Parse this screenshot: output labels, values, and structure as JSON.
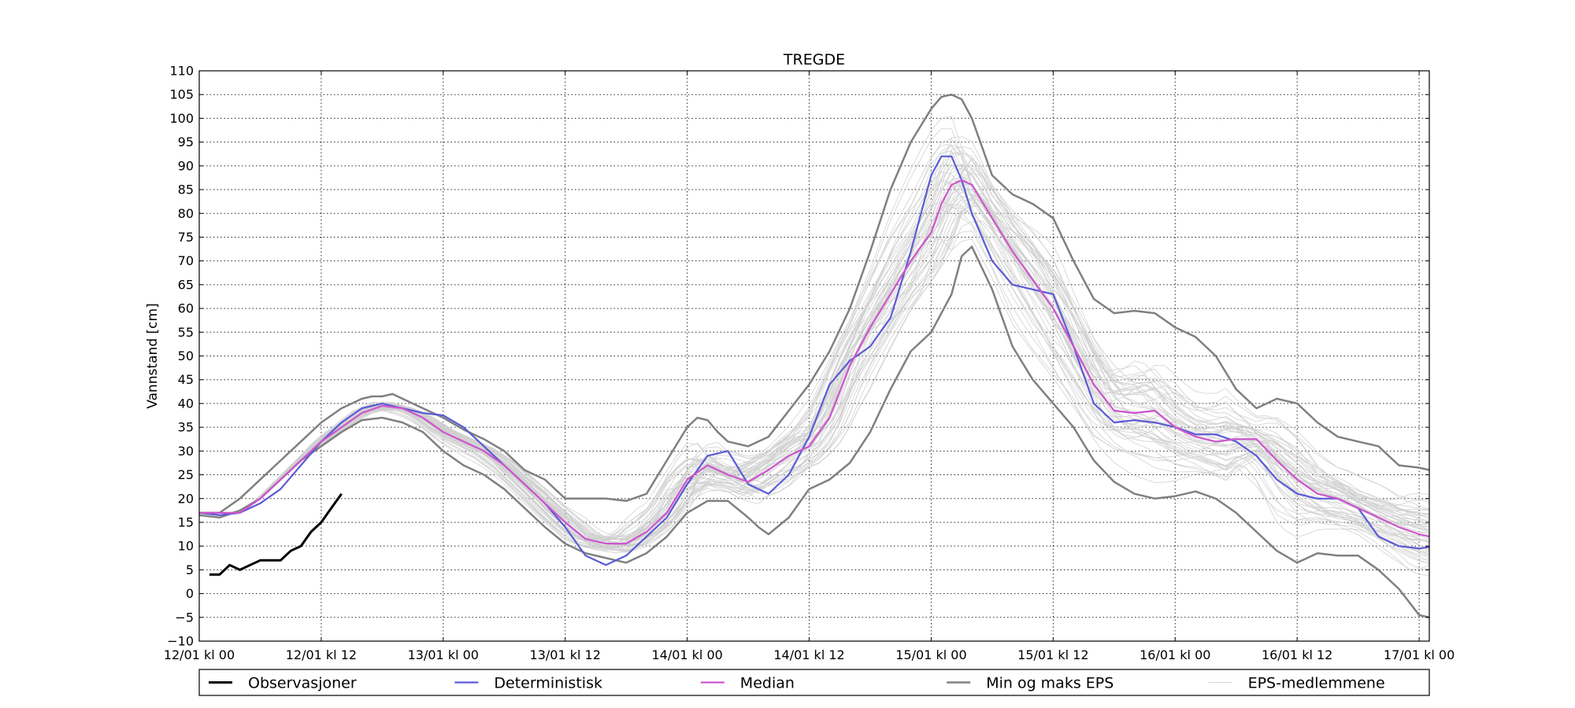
{
  "chart_data": {
    "type": "line",
    "title": "TREGDE",
    "ylabel": "Vannstand [cm]",
    "xlabel": "",
    "ylim": [
      -10,
      110
    ],
    "y_ticks": [
      -10,
      -5,
      0,
      5,
      10,
      15,
      20,
      25,
      30,
      35,
      40,
      45,
      50,
      55,
      60,
      65,
      70,
      75,
      80,
      85,
      90,
      95,
      100,
      105,
      110
    ],
    "xlim": [
      0,
      121
    ],
    "x_unit": "hours since 12/01 kl 00",
    "x_ticks": [
      {
        "x": 0,
        "label": "12/01 kl 00"
      },
      {
        "x": 12,
        "label": "12/01 kl 12"
      },
      {
        "x": 24,
        "label": "13/01 kl 00"
      },
      {
        "x": 36,
        "label": "13/01 kl 12"
      },
      {
        "x": 48,
        "label": "14/01 kl 00"
      },
      {
        "x": 60,
        "label": "14/01 kl 12"
      },
      {
        "x": 72,
        "label": "15/01 kl 00"
      },
      {
        "x": 84,
        "label": "15/01 kl 12"
      },
      {
        "x": 96,
        "label": "16/01 kl 00"
      },
      {
        "x": 108,
        "label": "16/01 kl 12"
      },
      {
        "x": 120,
        "label": "17/01 kl 00"
      }
    ],
    "grid": true,
    "legend_position": "bottom",
    "series": [
      {
        "name": "Observasjoner",
        "color": "#000000",
        "width": 3,
        "x": [
          1,
          2,
          3,
          4,
          5,
          6,
          7,
          8,
          9,
          10,
          11,
          12,
          13,
          14
        ],
        "y": [
          4,
          4,
          6,
          5,
          6,
          7,
          7,
          7,
          9,
          10,
          13,
          15,
          18,
          21
        ]
      },
      {
        "name": "Deterministisk",
        "color": "#5b5bd6",
        "width": 2.2,
        "x": [
          0,
          2,
          4,
          6,
          8,
          10,
          12,
          14,
          16,
          18,
          20,
          22,
          24,
          26,
          28,
          30,
          32,
          34,
          36,
          38,
          40,
          42,
          44,
          46,
          48,
          50,
          52,
          54,
          56,
          58,
          60,
          62,
          64,
          66,
          68,
          70,
          72,
          73,
          74,
          75,
          76,
          78,
          80,
          82,
          84,
          86,
          88,
          90,
          92,
          94,
          96,
          98,
          100,
          102,
          104,
          106,
          108,
          110,
          112,
          114,
          116,
          118,
          120,
          121
        ],
        "y": [
          17,
          16.5,
          17,
          19,
          22,
          27,
          32,
          36,
          39,
          40,
          39,
          38,
          37.5,
          35,
          31,
          27,
          23,
          19,
          14,
          8,
          6,
          8,
          12,
          16,
          23,
          29,
          30,
          23,
          21,
          25,
          33,
          44,
          49,
          52,
          58,
          72,
          88,
          92,
          92,
          87,
          80,
          70,
          65,
          64,
          63,
          52,
          40,
          36,
          36.5,
          36,
          35,
          33.5,
          33.5,
          32,
          29,
          24,
          21,
          20,
          20,
          18,
          12,
          10,
          9.5,
          9.8
        ]
      },
      {
        "name": "Median",
        "color": "#cc55cc",
        "width": 2.2,
        "x": [
          0,
          2,
          4,
          6,
          8,
          10,
          12,
          14,
          16,
          18,
          20,
          22,
          24,
          26,
          28,
          30,
          32,
          34,
          36,
          38,
          40,
          42,
          44,
          46,
          48,
          50,
          52,
          54,
          56,
          58,
          60,
          62,
          64,
          66,
          68,
          70,
          72,
          73,
          74,
          75,
          76,
          78,
          80,
          82,
          84,
          86,
          88,
          90,
          92,
          94,
          96,
          98,
          100,
          102,
          104,
          106,
          108,
          110,
          112,
          114,
          116,
          118,
          120,
          121
        ],
        "y": [
          17,
          17,
          17,
          20,
          24,
          28,
          32,
          35,
          38,
          39.5,
          39,
          37,
          34,
          32,
          30,
          27,
          23,
          19,
          15,
          11.5,
          10.5,
          10.5,
          13,
          17,
          24,
          27,
          25,
          23.5,
          26,
          29,
          31,
          37,
          48,
          56,
          63,
          70,
          76,
          82,
          86,
          87,
          86,
          79,
          72,
          66,
          60,
          52,
          44,
          38.5,
          38,
          38.5,
          35,
          33,
          32,
          32.5,
          32.5,
          28,
          24,
          21,
          20,
          18,
          16,
          14,
          12.5,
          12
        ]
      },
      {
        "name": "Min og maks EPS",
        "color": "#808080",
        "width": 2.5,
        "parts": [
          {
            "x": [
              0,
              2,
              4,
              6,
              8,
              10,
              12,
              14,
              16,
              17,
              18,
              19,
              20,
              22,
              24,
              26,
              28,
              30,
              32,
              34,
              36,
              38,
              40,
              42,
              44,
              46,
              48,
              49,
              50,
              51,
              52,
              54,
              56,
              58,
              60,
              62,
              64,
              66,
              68,
              70,
              72,
              73,
              74,
              75,
              76,
              78,
              80,
              82,
              84,
              86,
              88,
              90,
              92,
              94,
              96,
              98,
              100,
              102,
              104,
              106,
              108,
              110,
              112,
              114,
              116,
              118,
              120,
              121
            ],
            "y": [
              17,
              17,
              20,
              24,
              28,
              32,
              36,
              39,
              41,
              41.5,
              41.5,
              42,
              41,
              39,
              37,
              34.5,
              32.5,
              30,
              26,
              24,
              20,
              20,
              20,
              19.5,
              21,
              28,
              35,
              37,
              36.5,
              34,
              32,
              31,
              33,
              38.5,
              44,
              51,
              60,
              72,
              85,
              95,
              102,
              104.5,
              105,
              104,
              100,
              88,
              84,
              82,
              79,
              70,
              62,
              59,
              59.5,
              59,
              56,
              54,
              50,
              43,
              39,
              41,
              40,
              36,
              33,
              32,
              31,
              27,
              26.5,
              26
            ]
          },
          {
            "x": [
              0,
              2,
              4,
              6,
              8,
              10,
              12,
              14,
              16,
              18,
              20,
              22,
              24,
              26,
              28,
              30,
              32,
              34,
              36,
              38,
              40,
              42,
              44,
              46,
              48,
              50,
              52,
              54,
              55,
              56,
              58,
              60,
              62,
              64,
              66,
              68,
              70,
              72,
              74,
              75,
              76,
              78,
              80,
              82,
              84,
              86,
              88,
              90,
              92,
              94,
              96,
              98,
              100,
              102,
              104,
              106,
              108,
              110,
              112,
              114,
              116,
              118,
              120,
              121
            ],
            "y": [
              16.5,
              16,
              17.5,
              20,
              24,
              28,
              31,
              34,
              36.5,
              37,
              36,
              34,
              30,
              27,
              25,
              22,
              18,
              14,
              10.5,
              8.5,
              7.5,
              6.5,
              8.5,
              12,
              17,
              19.5,
              19.5,
              16,
              14,
              12.5,
              16,
              22,
              24,
              27.5,
              34,
              43,
              51,
              55,
              63,
              71,
              73,
              64,
              52,
              45,
              40,
              35,
              28,
              23.5,
              21,
              20,
              20.5,
              21.5,
              20,
              17,
              13,
              9,
              6.5,
              8.5,
              8,
              8,
              5,
              1,
              -4.5,
              -5
            ]
          }
        ]
      }
    ],
    "ensemble": {
      "name": "EPS-medlemmene",
      "color": "#cfcfcf",
      "member_count": 50
    },
    "legend": [
      {
        "label": "Observasjoner",
        "color": "#000000",
        "width": 3
      },
      {
        "label": "Deterministisk",
        "color": "#5b5bd6",
        "width": 2.2
      },
      {
        "label": "Median",
        "color": "#cc55cc",
        "width": 2.2
      },
      {
        "label": "Min og maks EPS",
        "color": "#808080",
        "width": 2.5
      },
      {
        "label": "EPS-medlemmene",
        "color": "#d4d4d4",
        "width": 1
      }
    ]
  }
}
